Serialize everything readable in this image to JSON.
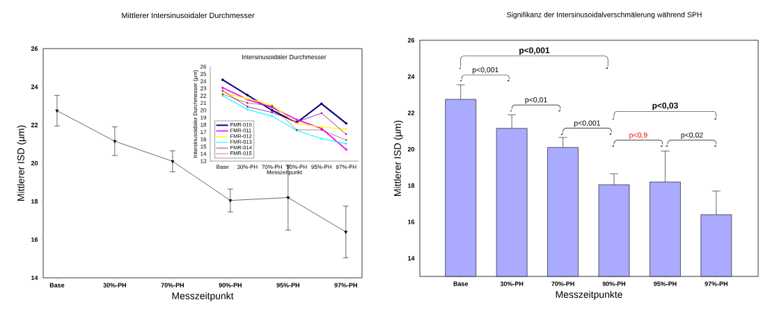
{
  "chart_data": [
    {
      "type": "line",
      "title": "Mittlerer Intersinusoidaler Durchmesser",
      "xlabel": "Messzeitpunkt",
      "ylabel": "Mittlerer ISD (µm)",
      "categories": [
        "Base",
        "30%-PH",
        "70%-PH",
        "90%-PH",
        "95%-PH",
        "97%-PH"
      ],
      "values": [
        22.75,
        21.15,
        20.1,
        18.05,
        18.2,
        16.4
      ],
      "errors": [
        0.8,
        0.75,
        0.55,
        0.6,
        1.7,
        1.35
      ],
      "color": "#000000",
      "marker": "triangle",
      "ylim": [
        14,
        26
      ],
      "yticks": [
        14,
        16,
        18,
        20,
        22,
        24,
        26
      ]
    },
    {
      "type": "line",
      "title": "Intersinusoidaler Durchmesser",
      "xlabel": "Messzeitpunkt",
      "ylabel": "Intersinusoidaler Durchmesser (µm)",
      "categories": [
        "Base",
        "30%-PH",
        "70%-PH",
        "90%-PH",
        "95%-PH",
        "97%-PH"
      ],
      "series": [
        {
          "name": "FMR-010",
          "color": "#000080",
          "values": [
            24.2,
            22.1,
            20.0,
            18.3,
            20.9,
            18.2
          ]
        },
        {
          "name": "FMR-011",
          "color": "#ff00ff",
          "values": [
            23.1,
            21.5,
            20.4,
            18.7,
            17.5,
            14.6
          ]
        },
        {
          "name": "FMR-012",
          "color": "#ffff00",
          "values": [
            22.4,
            21.6,
            20.7,
            18.2,
            17.7,
            17.4
          ]
        },
        {
          "name": "FMR-013",
          "color": "#00ffff",
          "values": [
            22.0,
            20.1,
            19.2,
            17.2,
            16.1,
            15.4
          ]
        },
        {
          "name": "FMR-014",
          "color": "#800080",
          "values": [
            22.7,
            20.5,
            19.7,
            18.4,
            19.6,
            16.7
          ]
        },
        {
          "name": "FMR-015",
          "color": "#800000",
          "values": [
            22.2,
            21.0,
            20.6,
            17.3,
            17.3,
            15.9
          ]
        }
      ],
      "legend": "left",
      "marker": "square",
      "ylim": [
        13,
        26
      ],
      "yticks": [
        13,
        14,
        15,
        16,
        17,
        18,
        19,
        20,
        21,
        22,
        23,
        24,
        25,
        26
      ]
    },
    {
      "type": "bar",
      "title": "Signifikanz der Intersinusoidalverschmälerung während SPH",
      "xlabel": "Messzeitpunkte",
      "ylabel": "Mittlerer ISD (µm)",
      "categories": [
        "Base",
        "30%-PH",
        "70%-PH",
        "90%-PH",
        "95%-PH",
        "97%-PH"
      ],
      "values": [
        22.75,
        21.15,
        20.1,
        18.05,
        18.2,
        16.4
      ],
      "errors": [
        [
          22.75,
          23.55
        ],
        [
          21.15,
          21.9
        ],
        [
          20.1,
          20.65
        ],
        [
          18.05,
          18.65
        ],
        [
          18.2,
          19.9
        ],
        [
          16.4,
          17.7
        ]
      ],
      "color": "#aaaaff",
      "ylim": [
        13,
        26
      ],
      "yticks": [
        14,
        16,
        18,
        20,
        22,
        24,
        26
      ],
      "annotations": [
        "p<0,001",
        "p<0,001",
        "p<0,01",
        "p<0,001",
        "p<0,03",
        "p<0,9",
        "p<0,02"
      ]
    }
  ]
}
